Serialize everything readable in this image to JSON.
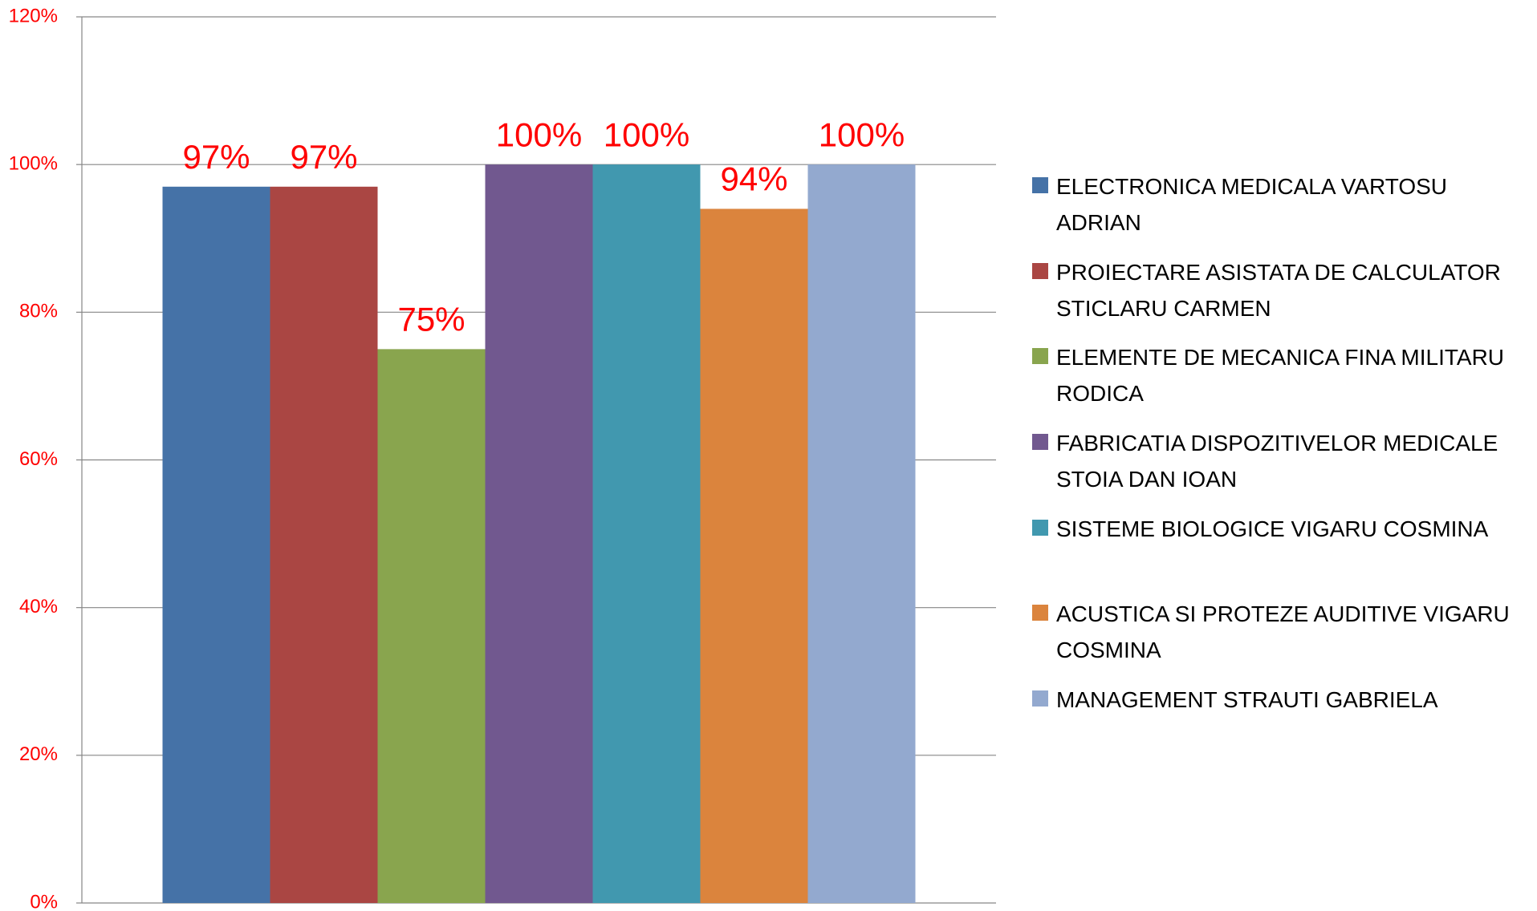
{
  "chart_data": {
    "type": "bar",
    "categories": [
      null
    ],
    "series": [
      {
        "name": "ELECTRONICA MEDICALA VARTOSU ADRIAN",
        "color": "#4572a7",
        "values": [
          97
        ],
        "value_labels": [
          "97%"
        ]
      },
      {
        "name": "PROIECTARE ASISTATA DE CALCULATOR STICLARU CARMEN",
        "color": "#aa4643",
        "values": [
          97
        ],
        "value_labels": [
          "97%"
        ]
      },
      {
        "name": "ELEMENTE DE MECANICA FINA MILITARU RODICA",
        "color": "#89a54e",
        "values": [
          75
        ],
        "value_labels": [
          "75%"
        ]
      },
      {
        "name": "FABRICATIA DISPOZITIVELOR MEDICALE STOIA DAN IOAN",
        "color": "#71588f",
        "values": [
          100
        ],
        "value_labels": [
          "100%"
        ]
      },
      {
        "name": "SISTEME BIOLOGICE VIGARU COSMINA",
        "color": "#4198af",
        "values": [
          100
        ],
        "value_labels": [
          "100%"
        ]
      },
      {
        "name": "ACUSTICA SI PROTEZE AUDITIVE VIGARU COSMINA",
        "color": "#db843d",
        "values": [
          94
        ],
        "value_labels": [
          "94%"
        ]
      },
      {
        "name": "MANAGEMENT STRAUTI GABRIELA",
        "color": "#93a9cf",
        "values": [
          100
        ],
        "value_labels": [
          "100%"
        ]
      }
    ],
    "ylim": [
      0,
      120
    ],
    "yticks": [
      {
        "value": 0,
        "label": "0%"
      },
      {
        "value": 20,
        "label": "20%"
      },
      {
        "value": 40,
        "label": "40%"
      },
      {
        "value": 60,
        "label": "60%"
      },
      {
        "value": 80,
        "label": "80%"
      },
      {
        "value": 100,
        "label": "100%"
      },
      {
        "value": 120,
        "label": "120%"
      }
    ],
    "grid": true,
    "legend": "right"
  }
}
